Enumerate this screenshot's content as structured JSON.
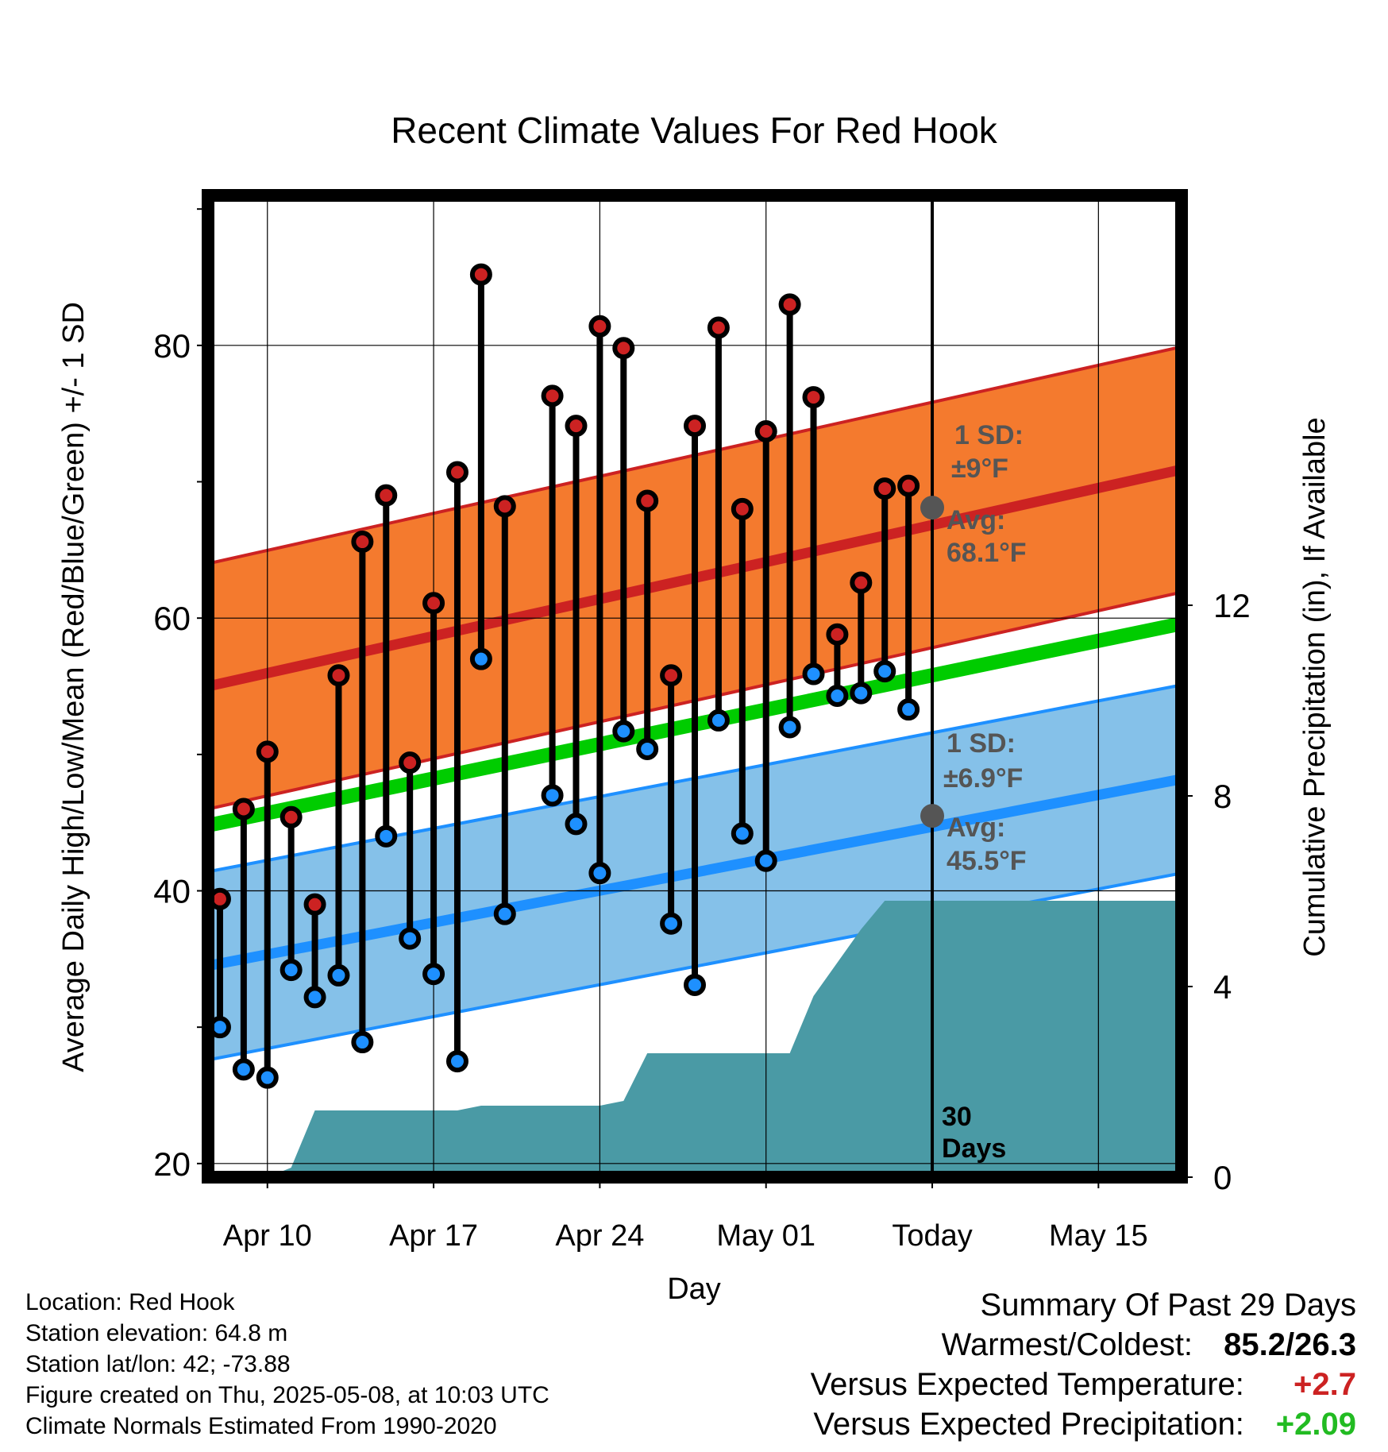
{
  "chart_data": {
    "type": "line",
    "title": "Recent Climate Values For Red Hook",
    "xlabel": "Day",
    "ylabel": "Average Daily High/Low/Mean (Red/Blue/Green) +/- 1 SD",
    "y2label": "Cumulative Precipitation (in), If Available",
    "ylim": [
      19,
      91
    ],
    "y2lim": [
      0,
      20.6
    ],
    "xlim": [
      -2.5,
      38.5
    ],
    "x_tick_labels": [
      "Apr 10",
      "Apr 17",
      "Apr 24",
      "May 01",
      "Today",
      "May 15"
    ],
    "x_ticks": [
      0,
      7,
      14,
      21,
      28,
      35
    ],
    "y_ticks": [
      20,
      40,
      60,
      80
    ],
    "y_minor_ticks": [
      30,
      50,
      70,
      90
    ],
    "y2_ticks": [
      0,
      4,
      8,
      12
    ],
    "grid": true,
    "colors": {
      "high": "#cc2222",
      "low": "#1e90ff",
      "mean": "#00cc00",
      "high_band": "#f47a2e",
      "low_band": "#85c1e9",
      "precip": "#4a9aa5",
      "avg_marker": "#555555"
    },
    "daily_high": {
      "x": [
        -2,
        -1,
        0,
        1,
        2,
        3,
        4,
        5,
        6,
        7,
        8,
        9,
        10,
        12,
        13,
        14,
        15,
        16,
        17,
        18,
        19,
        20,
        21,
        22,
        23,
        24,
        25,
        26,
        27
      ],
      "values": [
        39.4,
        46.0,
        50.2,
        45.4,
        39.0,
        55.8,
        65.6,
        69.0,
        49.4,
        61.1,
        70.7,
        85.2,
        68.2,
        76.3,
        74.1,
        81.4,
        79.8,
        68.6,
        55.8,
        74.1,
        81.3,
        68.0,
        73.7,
        83.0,
        76.2,
        58.8,
        62.6,
        69.5,
        69.7
      ]
    },
    "daily_low": {
      "x": [
        -2,
        -1,
        0,
        1,
        2,
        3,
        4,
        5,
        6,
        7,
        8,
        9,
        10,
        12,
        13,
        14,
        15,
        16,
        17,
        18,
        19,
        20,
        21,
        22,
        23,
        24,
        25,
        26,
        27
      ],
      "values": [
        30.0,
        26.9,
        26.3,
        34.2,
        32.2,
        33.8,
        28.9,
        44.0,
        36.5,
        33.9,
        27.5,
        57.0,
        38.3,
        47.0,
        44.9,
        41.3,
        51.7,
        50.4,
        37.6,
        33.1,
        52.5,
        44.2,
        42.2,
        52.0,
        55.9,
        54.3,
        54.5,
        56.1,
        53.3
      ]
    },
    "normal_high": {
      "x": [
        -2.5,
        38.5
      ],
      "start": 55.0,
      "end": 70.9,
      "sd": 9,
      "avg_today": 68.1,
      "sd_label": "1 SD:",
      "sd_value": "±9°F",
      "avg_label": "Avg:",
      "avg_value": "68.1°F"
    },
    "normal_low": {
      "x": [
        -2.5,
        38.5
      ],
      "start": 34.5,
      "end": 48.2,
      "sd": 6.9,
      "avg_today": 45.5,
      "sd_label": "1 SD:",
      "sd_value": "±6.9°F",
      "avg_label": "Avg:",
      "avg_value": "45.5°F"
    },
    "normal_mean": {
      "x": [
        -2.5,
        38.5
      ],
      "start": 44.8,
      "end": 59.6
    },
    "cumulative_precip": {
      "x": [
        -2.5,
        0,
        1,
        2,
        8,
        9,
        14,
        15,
        16,
        21,
        22,
        23,
        24,
        25,
        26,
        27,
        38.5
      ],
      "values": [
        0,
        0,
        0.2,
        1.4,
        1.4,
        1.5,
        1.5,
        1.6,
        2.6,
        2.6,
        2.6,
        3.8,
        4.5,
        5.2,
        5.8,
        5.8,
        5.8
      ]
    },
    "today_marker": {
      "x": 28,
      "label_line1": "30",
      "label_line2": "Days"
    }
  },
  "info": {
    "location": "Location: Red Hook",
    "elevation": "Station elevation: 64.8 m",
    "latlon": "Station lat/lon: 42; -73.88",
    "created": "Figure created on Thu, 2025-05-08, at 10:03 UTC",
    "normals": "Climate Normals Estimated From 1990-2020"
  },
  "summary": {
    "title": "Summary Of Past 29 Days",
    "warm_cold_label": "Warmest/Coldest:",
    "warm_cold_value": "85.2/26.3",
    "temp_label": "Versus Expected Temperature:",
    "temp_value": "+2.7",
    "temp_color": "#cc2222",
    "precip_label": "Versus Expected Precipitation:",
    "precip_value": "+2.09",
    "precip_color": "#22bb22"
  }
}
